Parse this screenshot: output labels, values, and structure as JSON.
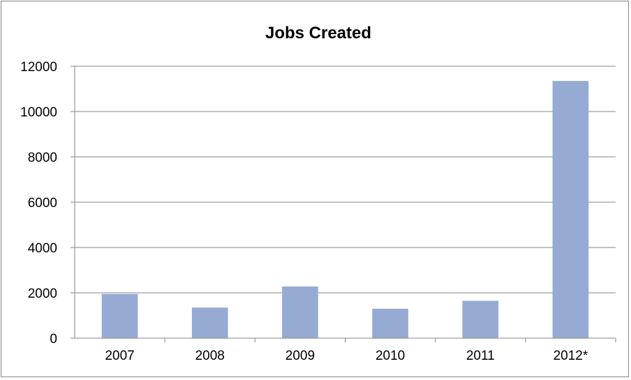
{
  "chart_data": {
    "type": "bar",
    "title": "Jobs Created",
    "xlabel": "",
    "ylabel": "",
    "categories": [
      "2007",
      "2008",
      "2009",
      "2010",
      "2011",
      "2012*"
    ],
    "values": [
      1950,
      1350,
      2280,
      1300,
      1650,
      11350
    ],
    "ylim": [
      0,
      12000
    ],
    "yticks": [
      "0",
      "2000",
      "4000",
      "6000",
      "8000",
      "10000",
      "12000"
    ],
    "grid": "horizontal",
    "legend": "none",
    "bar_color": "#95abd3",
    "grid_color": "#868686"
  }
}
